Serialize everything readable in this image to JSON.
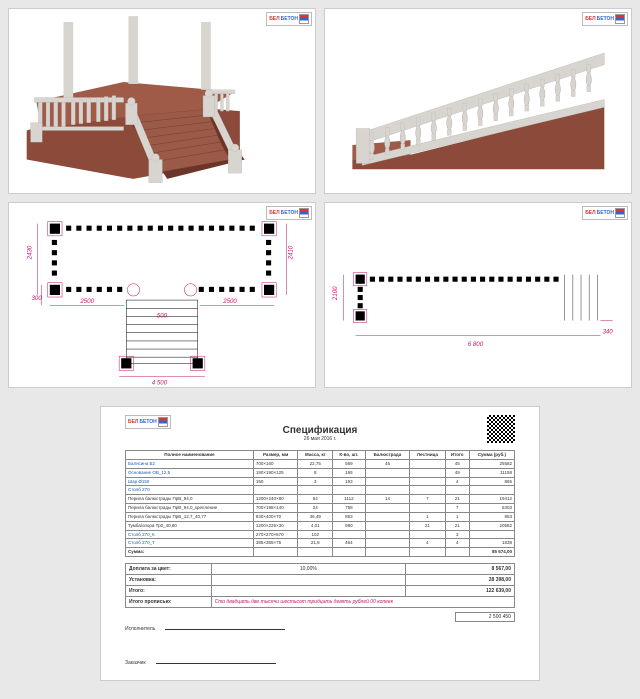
{
  "logo": {
    "t1": "БЕЛ",
    "t2": "БЕТОН"
  },
  "spec": {
    "title": "Спецификация",
    "date": "26 мая 2016 г.",
    "headers": [
      "Полное наименование",
      "Размер, мм",
      "Масса, кг",
      "К-во, шт.",
      "Балюстрада",
      "Лестница",
      "Итого",
      "Сумма (руб.)"
    ],
    "rows": [
      {
        "n": "Балясина Б2",
        "r": "700×160",
        "m": "22,75",
        "k": "569",
        "b": "45",
        "l": "",
        "i": "45",
        "s": "25582",
        "link": true
      },
      {
        "n": "Основание ОВ_12,5",
        "r": "190×190×125",
        "m": "8",
        "k": "165",
        "b": "",
        "l": "",
        "i": "49",
        "s": "11158",
        "link": true
      },
      {
        "n": "Шар Ø150",
        "r": "150",
        "m": "3",
        "k": "193",
        "b": "",
        "l": "",
        "i": "4",
        "s": "865",
        "link": true
      },
      {
        "n": "Столб 270",
        "r": "",
        "m": "",
        "k": "",
        "b": "",
        "l": "",
        "i": "",
        "s": "",
        "link": true
      },
      {
        "n": "Перила балюстрады ПрВ_94,0",
        "r": "1200×240×80",
        "m": "54",
        "k": "1112",
        "b": "14",
        "l": "7",
        "i": "21",
        "s": "19412",
        "link": false
      },
      {
        "n": "Перила балюстрады ПрВ_94,0_крепление",
        "r": "700×198×140",
        "m": "24",
        "k": "758",
        "b": "",
        "l": "",
        "i": "7",
        "s": "5303",
        "link": false
      },
      {
        "n": "Перила балюстрады ПрВ_12,7_40,77",
        "r": "830×400×70",
        "m": "36,49",
        "k": "853",
        "b": "",
        "l": "1",
        "i": "1",
        "s": "853",
        "link": false
      },
      {
        "n": "Тумба/опора Тр0_40,80",
        "r": "1200×225×30",
        "m": "4,01",
        "k": "980",
        "b": "",
        "l": "21",
        "i": "21",
        "s": "20582",
        "link": false
      },
      {
        "n": "Столб 270_К",
        "r": "270×270×670",
        "m": "102",
        "k": "",
        "b": "",
        "l": "",
        "i": "3",
        "s": "",
        "link": true
      },
      {
        "n": "Столб 270_Т",
        "r": "385×385×75",
        "m": "21,8",
        "k": "464",
        "b": "",
        "l": "4",
        "i": "4",
        "s": "1838",
        "link": true
      }
    ],
    "sum_label": "Сумма:",
    "sum_value": "85 674,00",
    "extra": [
      {
        "l": "Доплата за цвет:",
        "m": "10,00%",
        "v": "8 567,00"
      },
      {
        "l": "Установка:",
        "m": "",
        "v": "28 398,00"
      },
      {
        "l": "Итого:",
        "m": "",
        "v": "122 639,00"
      }
    ],
    "written_label": "Итого прописью:",
    "written": "Сто двадцать две тысячи шестьсот тридцать девять рублей 00 копеек",
    "executor_label": "Исполнитель",
    "customer_label": "Заказчик",
    "grand": "2 500 450"
  },
  "plan_dims": {
    "a": {
      "w": "4 500",
      "w1": "2500",
      "w2": "2500",
      "gap": "500",
      "d": "2430",
      "d2": "2410",
      "off": "300"
    },
    "b": {
      "w": "6 800",
      "d": "2100",
      "off": "340"
    }
  },
  "colors": {
    "brick": "#8b4a3a",
    "stone": "#d8d5d0",
    "dim": "#c3186b"
  }
}
